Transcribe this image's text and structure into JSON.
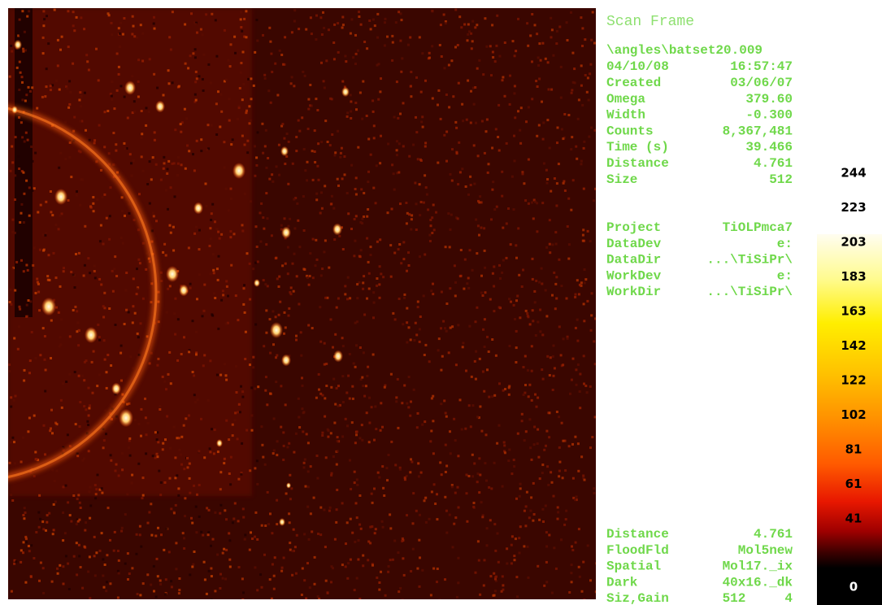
{
  "panel": {
    "title": "Scan Frame",
    "path": "\\angles\\batset20.009",
    "date": "04/10/08",
    "time": "16:57:47",
    "frame_info": [
      {
        "label": "Created",
        "value": "03/06/07"
      },
      {
        "label": "Omega",
        "value": "379.60"
      },
      {
        "label": "Width",
        "value": "-0.300"
      },
      {
        "label": "Counts",
        "value": "8,367,481"
      },
      {
        "label": "Time (s)",
        "value": "39.466"
      },
      {
        "label": "Distance",
        "value": "4.761"
      },
      {
        "label": "Size",
        "value": "512"
      }
    ],
    "project_info": [
      {
        "label": "Project",
        "value": "TiOLPmca7"
      },
      {
        "label": "DataDev",
        "value": "e:"
      },
      {
        "label": "DataDir",
        "value": "...\\TiSiPr\\"
      },
      {
        "label": "WorkDev",
        "value": "e:"
      },
      {
        "label": "WorkDir",
        "value": "...\\TiSiPr\\"
      }
    ],
    "calibration_info": [
      {
        "label": "Distance",
        "value": "4.761"
      },
      {
        "label": "FloodFld",
        "value": "Mol5new"
      },
      {
        "label": "Spatial",
        "value": "Mol17._ix"
      },
      {
        "label": "Dark",
        "value": "40x16._dk"
      },
      {
        "label": "Siz,Gain",
        "value": "512     4"
      }
    ]
  },
  "colorbar": {
    "labels": [
      244,
      223,
      203,
      183,
      163,
      142,
      122,
      102,
      81,
      61,
      41,
      0
    ]
  }
}
